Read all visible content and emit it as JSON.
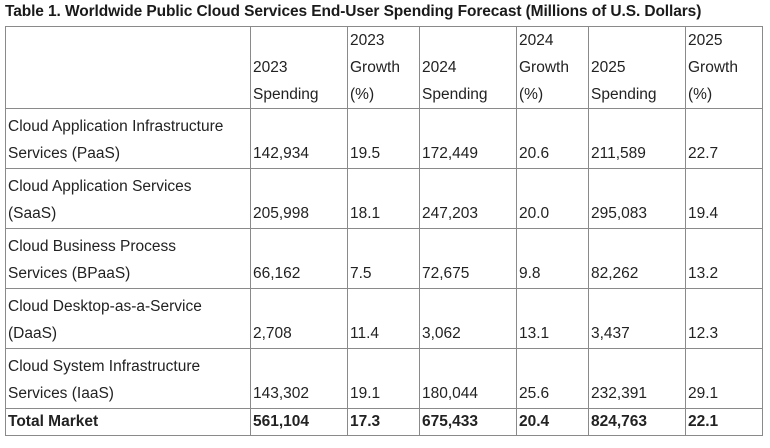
{
  "title": "Table 1. Worldwide Public Cloud Services End-User Spending Forecast (Millions of U.S. Dollars)",
  "columns": [
    {
      "lines": [
        "",
        "2023",
        "Spending"
      ]
    },
    {
      "lines": [
        "2023",
        "Growth",
        "(%)"
      ]
    },
    {
      "lines": [
        "",
        "2024",
        "Spending"
      ]
    },
    {
      "lines": [
        "2024",
        "Growth",
        "(%)"
      ]
    },
    {
      "lines": [
        "",
        "2025",
        "Spending"
      ]
    },
    {
      "lines": [
        "2025",
        "Growth",
        "(%)"
      ]
    }
  ],
  "rows": [
    {
      "label": [
        "Cloud Application Infrastructure",
        "Services (PaaS)"
      ],
      "values": [
        "142,934",
        "19.5",
        "172,449",
        "20.6",
        "211,589",
        "22.7"
      ]
    },
    {
      "label": [
        "Cloud Application Services",
        "(SaaS)"
      ],
      "values": [
        "205,998",
        "18.1",
        "247,203",
        "20.0",
        "295,083",
        "19.4"
      ]
    },
    {
      "label": [
        "Cloud Business Process",
        "Services (BPaaS)"
      ],
      "values": [
        "66,162",
        "7.5",
        "72,675",
        "9.8",
        "82,262",
        "13.2"
      ]
    },
    {
      "label": [
        "Cloud Desktop-as-a-Service",
        "(DaaS)"
      ],
      "values": [
        "2,708",
        "11.4",
        "3,062",
        "13.1",
        "3,437",
        "12.3"
      ]
    },
    {
      "label": [
        "Cloud System Infrastructure",
        "Services (IaaS)"
      ],
      "values": [
        "143,302",
        "19.1",
        "180,044",
        "25.6",
        "232,391",
        "29.1"
      ]
    }
  ],
  "total": {
    "label": "Total Market",
    "values": [
      "561,104",
      "17.3",
      "675,433",
      "20.4",
      "824,763",
      "22.1"
    ]
  }
}
